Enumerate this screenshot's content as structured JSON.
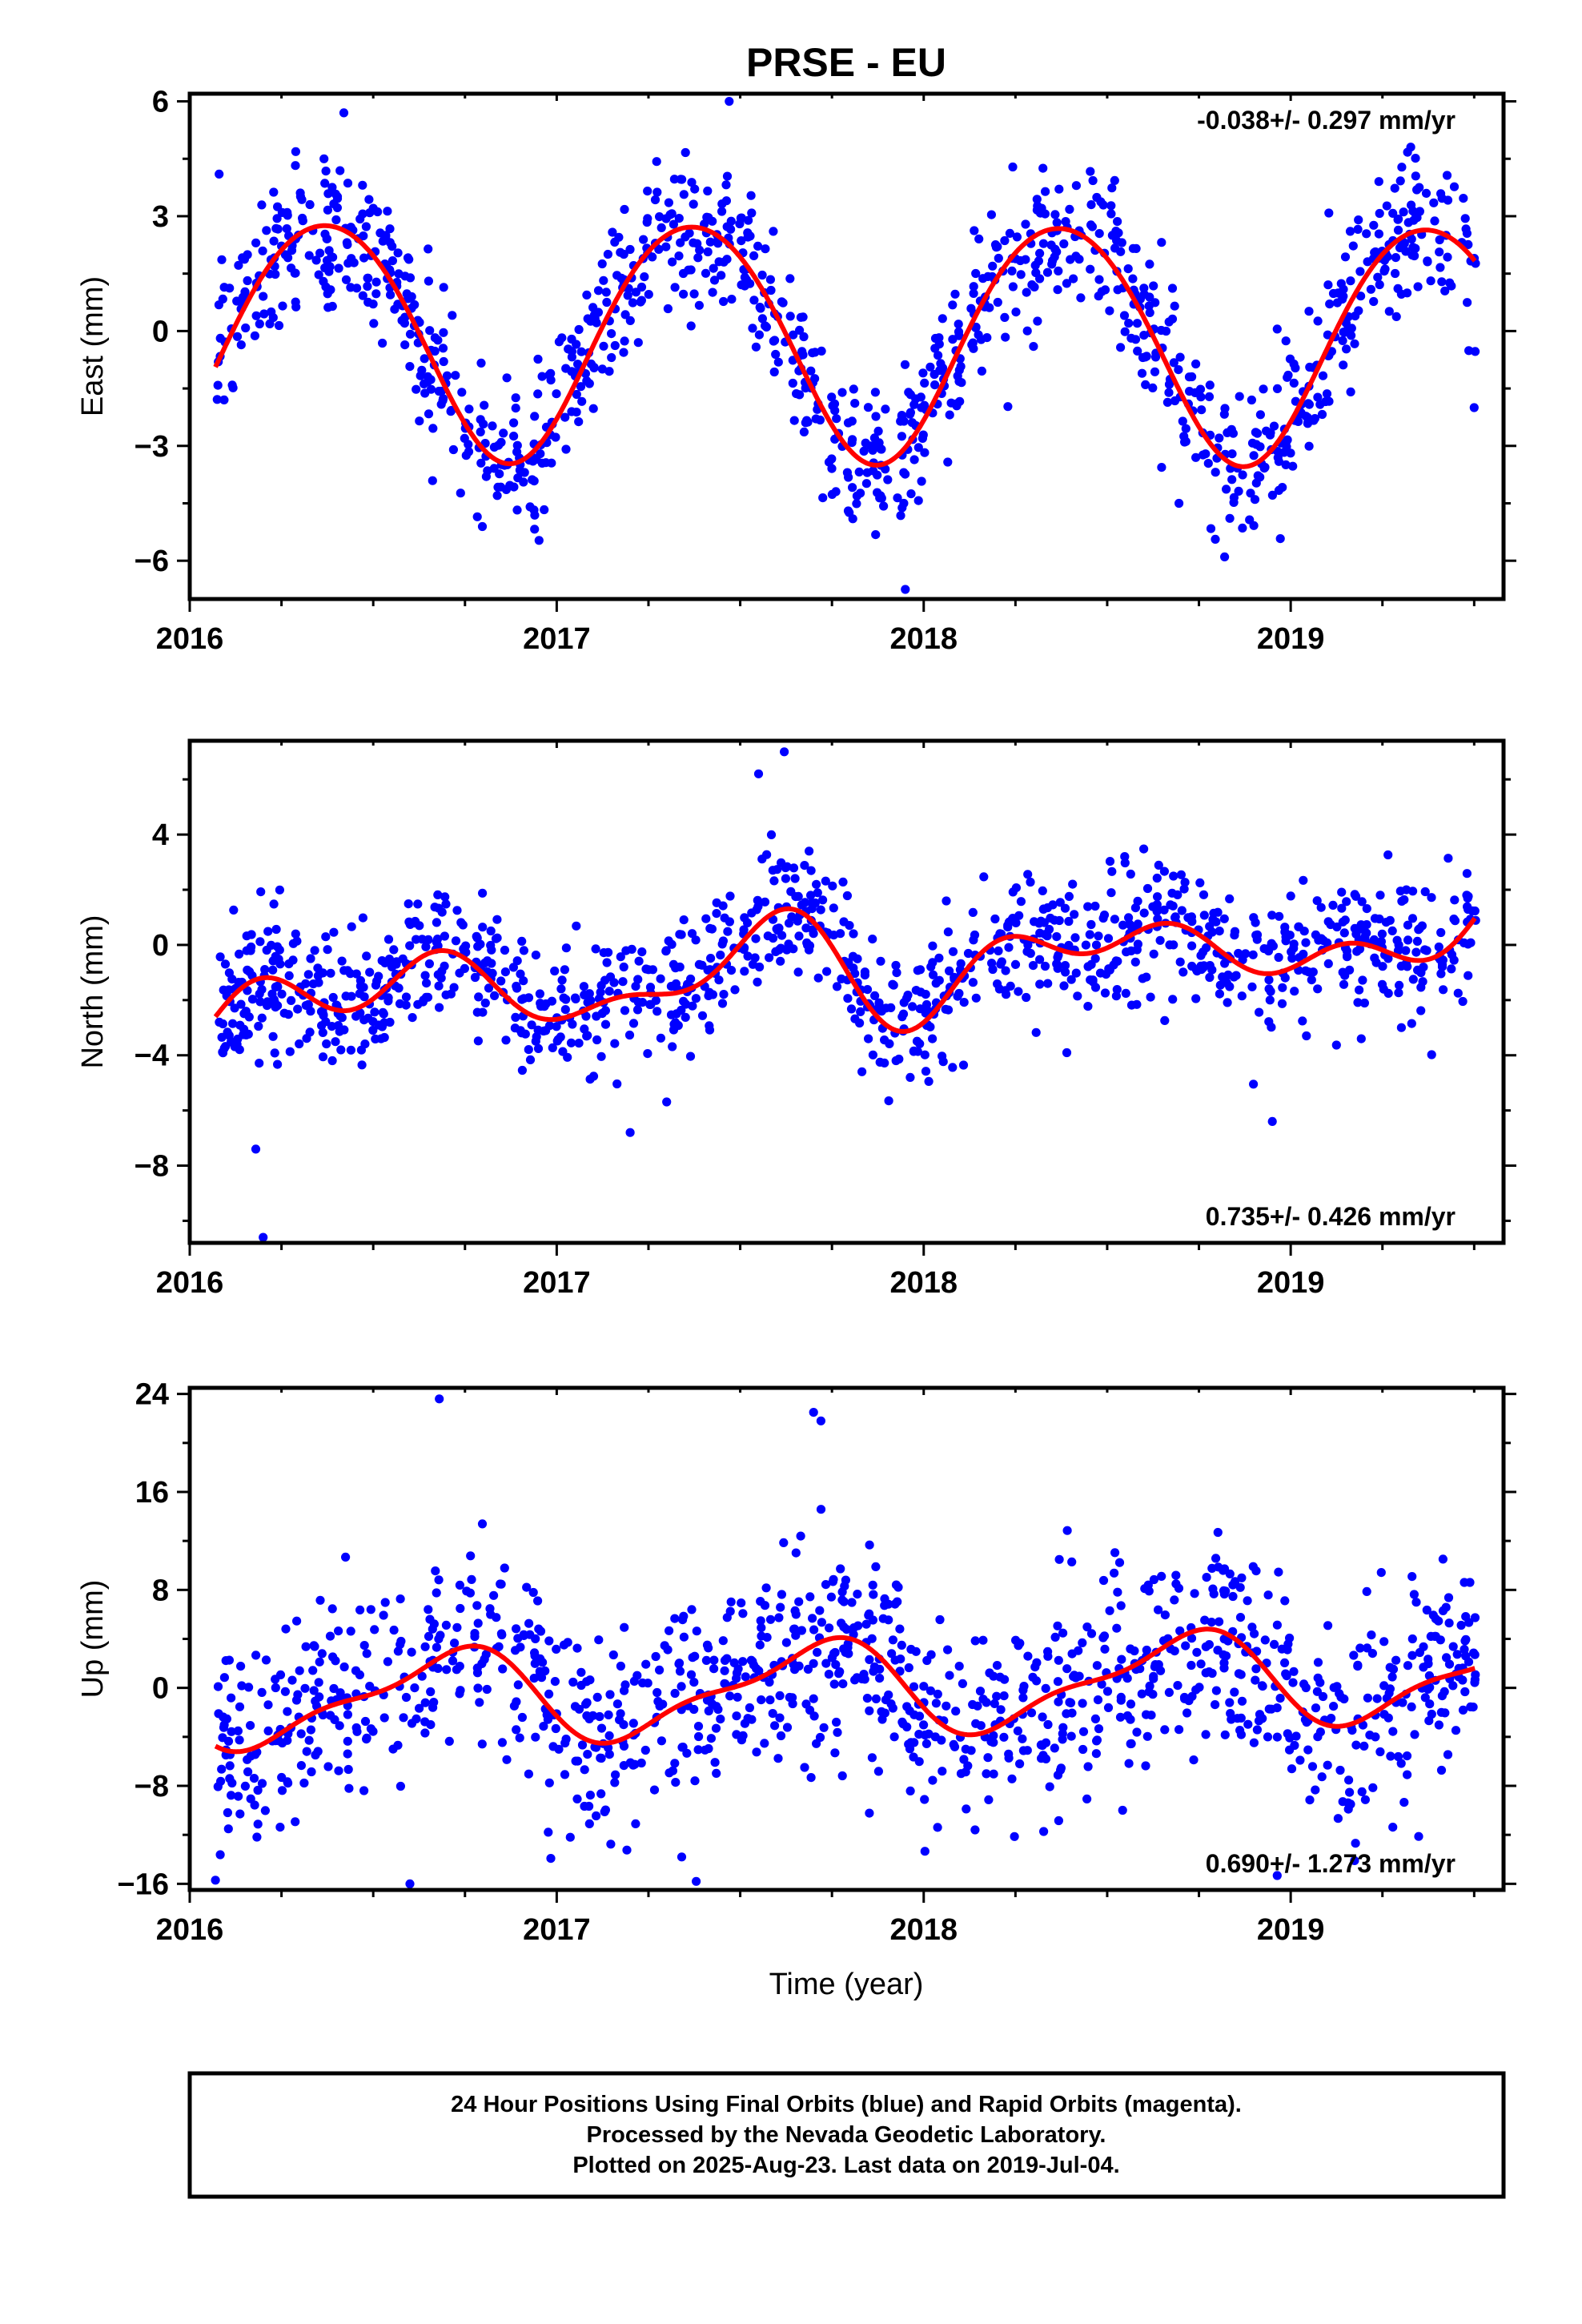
{
  "title": "PRSE - EU",
  "xlabel": "Time (year)",
  "footer": {
    "lines": [
      "24 Hour Positions Using Final Orbits (blue) and Rapid Orbits (magenta).",
      "Processed by the Nevada Geodetic Laboratory.",
      "Plotted on 2025-Aug-23. Last data on 2019-Jul-04."
    ]
  },
  "colors": {
    "points": "#0000ff",
    "model": "#ff0000",
    "frame": "#000000"
  },
  "chart_data": [
    {
      "type": "scatter",
      "ylabel": "East (mm)",
      "rate_text": "-0.038+/- 0.297 mm/yr",
      "rate_placement": "top-right",
      "xlim": [
        2016.0,
        2019.58
      ],
      "ylim": [
        -7.0,
        6.2
      ],
      "x_ticks": [
        2016,
        2017,
        2018,
        2019
      ],
      "y_ticks": [
        6,
        3,
        0,
        -3,
        -6
      ],
      "model": {
        "offset": -0.2,
        "trend": -0.038,
        "t0": 2017.75,
        "annual_amp": 3.1,
        "annual_phase": 2016.12,
        "semi_amp": 0.2,
        "semi_phase": 2016.0,
        "noise": 1.0,
        "seed": 11,
        "n_points": 1150
      },
      "outliers": [
        [
          2016.08,
          4.1
        ],
        [
          2016.42,
          5.7
        ],
        [
          2017.47,
          6.0
        ],
        [
          2017.95,
          -6.75
        ],
        [
          2018.82,
          -5.9
        ],
        [
          2019.5,
          -2.0
        ]
      ]
    },
    {
      "type": "scatter",
      "ylabel": "North (mm)",
      "rate_text": "0.735+/- 0.426 mm/yr",
      "rate_placement": "bottom-right",
      "xlim": [
        2016.0,
        2019.58
      ],
      "ylim": [
        -10.8,
        7.4
      ],
      "x_ticks": [
        2016,
        2017,
        2018,
        2019
      ],
      "y_ticks": [
        4,
        0,
        -4,
        -8
      ],
      "model": {
        "offset": -0.9,
        "trend": 0.735,
        "t0": 2017.75,
        "annual_amp": 1.1,
        "annual_phase": 2016.3,
        "semi_amp": 0.85,
        "semi_phase": 2016.05,
        "extra_amp": 0.7,
        "extra_period": 0.7,
        "noise": 1.2,
        "seed": 23,
        "n_points": 1150
      },
      "outliers": [
        [
          2016.2,
          -10.6
        ],
        [
          2016.18,
          -7.4
        ],
        [
          2017.2,
          -6.8
        ],
        [
          2017.55,
          6.2
        ],
        [
          2017.62,
          7.0
        ],
        [
          2018.95,
          -6.4
        ]
      ]
    },
    {
      "type": "scatter",
      "ylabel": "Up (mm)",
      "rate_text": "0.690+/- 1.273 mm/yr",
      "rate_placement": "bottom-right",
      "xlim": [
        2016.0,
        2019.58
      ],
      "ylim": [
        -16.5,
        24.5
      ],
      "x_ticks": [
        2016,
        2017,
        2018,
        2019
      ],
      "y_ticks": [
        24,
        16,
        8,
        0,
        -8,
        -16
      ],
      "model": {
        "offset": 0.0,
        "trend": 0.69,
        "t0": 2017.75,
        "annual_amp": 3.5,
        "annual_phase": 2016.45,
        "semi_amp": 1.2,
        "semi_phase": 2016.2,
        "noise": 4.2,
        "seed": 37,
        "n_points": 1150
      },
      "outliers": [
        [
          2016.68,
          23.6
        ],
        [
          2017.7,
          22.5
        ],
        [
          2017.72,
          21.8
        ],
        [
          2016.6,
          -16.0
        ],
        [
          2017.38,
          -15.8
        ],
        [
          2016.07,
          -15.7
        ]
      ]
    }
  ]
}
